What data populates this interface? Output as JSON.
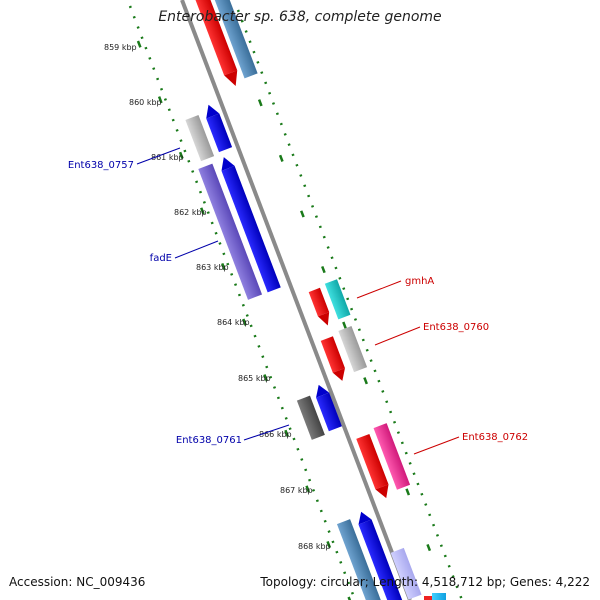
{
  "title": "Enterobacter sp. 638, complete genome",
  "accession": "Accession: NC_009436",
  "summary": "Topology: circular; Length: 4,518,712 bp; Genes: 4,222",
  "colors": {
    "backbone": "#8a8a8a",
    "ticks": "#1a7a1a",
    "forward_labels": "#cc0000",
    "reverse_labels": "#0000aa"
  },
  "scale_labels": [
    "859 kbp",
    "860 kbp",
    "861 kbp",
    "862 kbp",
    "863 kbp",
    "864 kbp",
    "865 kbp",
    "866 kbp",
    "867 kbp",
    "868 kbp"
  ],
  "gene_labels": {
    "ent0757": "Ent638_0757",
    "fadE": "fadE",
    "ent0761": "Ent638_0761",
    "gmhA": "gmhA",
    "ent0760": "Ent638_0760",
    "ent0762": "Ent638_0762"
  }
}
